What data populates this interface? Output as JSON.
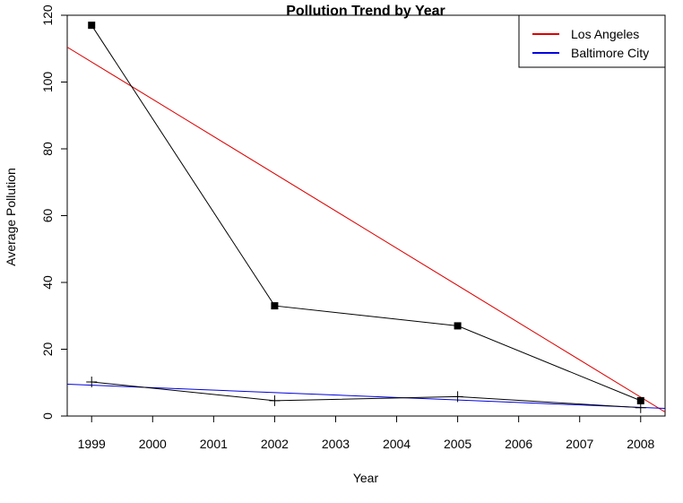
{
  "chart_data": {
    "type": "line",
    "title": "Pollution Trend by Year",
    "xlabel": "Year",
    "ylabel": "Average Pollution",
    "x": [
      1999,
      2002,
      2005,
      2008
    ],
    "xlim": [
      1998.6,
      2008.4
    ],
    "ylim": [
      0,
      120
    ],
    "xticks": [
      "1999",
      "2000",
      "2001",
      "2002",
      "2003",
      "2004",
      "2005",
      "2006",
      "2007",
      "2008"
    ],
    "yticks": [
      "0",
      "20",
      "40",
      "60",
      "80",
      "100",
      "120"
    ],
    "series": [
      {
        "name": "Los Angeles",
        "marker": "square",
        "line_color": "#000000",
        "values": [
          117,
          33,
          27,
          4.6
        ]
      },
      {
        "name": "Baltimore City",
        "marker": "plus",
        "line_color": "#000000",
        "values": [
          10.2,
          4.6,
          5.8,
          2.5
        ]
      }
    ],
    "trend_lines": [
      {
        "name": "Los Angeles",
        "color": "#dd0000",
        "slope": -11.15,
        "intercept": 22394.85
      },
      {
        "name": "Baltimore City",
        "color": "#0000dd",
        "slope": -0.74,
        "intercept": 1488.5
      }
    ],
    "legend": {
      "position": "top-right",
      "entries": [
        {
          "label": "Los Angeles",
          "color": "#dd0000"
        },
        {
          "label": "Baltimore City",
          "color": "#0000dd"
        }
      ]
    },
    "grid": false
  }
}
